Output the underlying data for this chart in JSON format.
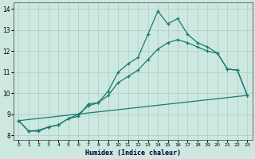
{
  "line1_x": [
    0,
    1,
    2,
    3,
    4,
    5,
    6,
    7,
    8,
    9,
    10,
    11,
    12,
    13,
    14,
    15,
    16,
    17,
    18,
    19,
    20,
    21,
    22,
    23
  ],
  "line1_y": [
    8.7,
    8.2,
    8.2,
    8.4,
    8.5,
    8.8,
    8.9,
    9.5,
    9.55,
    10.1,
    11.0,
    11.4,
    11.7,
    12.8,
    13.9,
    13.3,
    13.55,
    12.8,
    12.4,
    12.2,
    11.9,
    11.15,
    11.1,
    9.9
  ],
  "line2_x": [
    0,
    1,
    2,
    3,
    4,
    5,
    6,
    7,
    8,
    9,
    10,
    11,
    12,
    13,
    14,
    15,
    16,
    17,
    18,
    19,
    20,
    21,
    22,
    23
  ],
  "line2_y": [
    8.7,
    8.2,
    8.25,
    8.4,
    8.5,
    8.8,
    9.0,
    9.4,
    9.55,
    9.9,
    10.5,
    10.8,
    11.1,
    11.6,
    12.1,
    12.4,
    12.55,
    12.4,
    12.2,
    12.0,
    11.9,
    11.15,
    11.1,
    9.9
  ],
  "line3_x": [
    0,
    23
  ],
  "line3_y": [
    8.7,
    9.9
  ],
  "line_color": "#1a7a6e",
  "bg_color": "#cce8e0",
  "grid_color": "#aaccc4",
  "xlabel": "Humidex (Indice chaleur)",
  "xlim": [
    -0.5,
    23.5
  ],
  "ylim": [
    7.8,
    14.3
  ],
  "yticks": [
    8,
    9,
    10,
    11,
    12,
    13,
    14
  ],
  "xticks": [
    0,
    1,
    2,
    3,
    4,
    5,
    6,
    7,
    8,
    9,
    10,
    11,
    12,
    13,
    14,
    15,
    16,
    17,
    18,
    19,
    20,
    21,
    22,
    23
  ]
}
